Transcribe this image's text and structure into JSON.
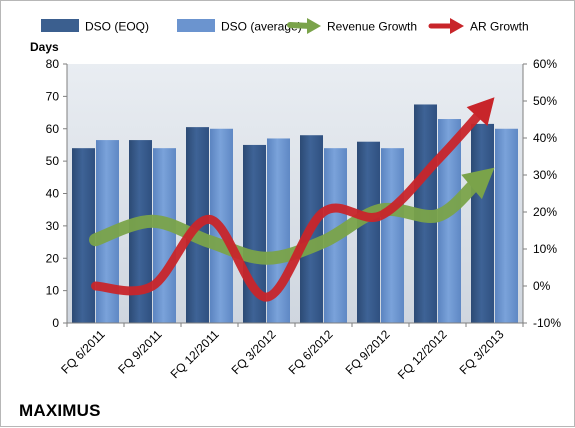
{
  "company": "MAXIMUS",
  "chart_data": {
    "type": "bar",
    "categories": [
      "FQ 6/2011",
      "FQ 9/2011",
      "FQ 12/2011",
      "FQ 3/2012",
      "FQ 6/2012",
      "FQ 9/2012",
      "FQ 12/2012",
      "FQ 3/2013"
    ],
    "ylabel": "Days",
    "ylim": [
      0,
      80
    ],
    "yticks": [
      "0",
      "10",
      "20",
      "30",
      "40",
      "50",
      "60",
      "70",
      "80"
    ],
    "y2lim": [
      -0.1,
      0.6
    ],
    "y2ticks": [
      "-10%",
      "0%",
      "10%",
      "20%",
      "30%",
      "40%",
      "50%",
      "60%"
    ],
    "grid": false,
    "legend_position": "top",
    "series": [
      {
        "name": "DSO (EOQ)",
        "type": "bar",
        "axis": "left",
        "color": "#3b5f8f",
        "values": [
          54,
          56.5,
          60.5,
          55,
          58,
          56,
          67.5,
          61.5
        ]
      },
      {
        "name": "DSO (average)",
        "type": "bar",
        "axis": "left",
        "color": "#6b94cf",
        "values": [
          56.5,
          54,
          60,
          57,
          54,
          54,
          63,
          60
        ]
      },
      {
        "name": "Revenue Growth",
        "type": "arrow-line",
        "axis": "right",
        "color": "#7aa34a",
        "values": [
          0.125,
          0.175,
          0.12,
          0.075,
          0.12,
          0.205,
          0.19,
          0.32
        ]
      },
      {
        "name": "AR Growth",
        "type": "arrow-line",
        "axis": "right",
        "color": "#c8252a",
        "values": [
          0.0,
          0.0,
          0.18,
          -0.03,
          0.2,
          0.19,
          0.34,
          0.51
        ]
      }
    ]
  }
}
